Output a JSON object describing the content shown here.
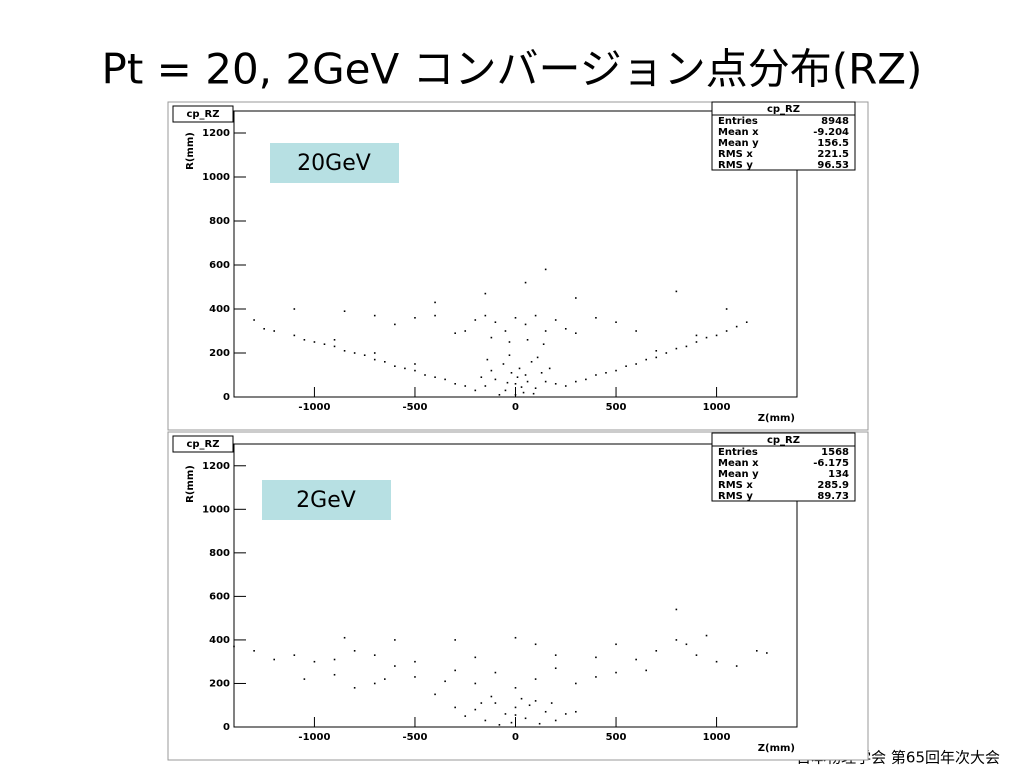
{
  "title": "Pt = 20, 2GeV コンバージョン点分布(RZ)",
  "footer": "日本物理学会 第65回年次大会",
  "chart_data": [
    {
      "type": "scatter",
      "panel_label": "cp_RZ",
      "annotation": "20GeV",
      "xlabel": "Z(mm)",
      "ylabel": "R(mm)",
      "xlim": [
        -1400,
        1400
      ],
      "ylim": [
        0,
        1300
      ],
      "xticks": [
        -1000,
        -500,
        0,
        500,
        1000
      ],
      "yticks": [
        0,
        200,
        400,
        600,
        800,
        1000,
        1200
      ],
      "color": "#000000",
      "stats": {
        "title": "cp_RZ",
        "rows": [
          {
            "label": "Entries",
            "value": 8948
          },
          {
            "label": "Mean x",
            "value": -9.204
          },
          {
            "label": "Mean y",
            "value": 156.5
          },
          {
            "label": "RMS x",
            "value": 221.5
          },
          {
            "label": "RMS y",
            "value": 96.53
          }
        ]
      },
      "x": [
        -150,
        -100,
        -50,
        0,
        50,
        100,
        150,
        -120,
        -60,
        20,
        80,
        130,
        -30,
        40,
        -80,
        10,
        60,
        -20,
        110,
        -140,
        0,
        30,
        -40,
        90,
        170,
        -170,
        200,
        -200,
        -250,
        -200,
        -150,
        -100,
        -50,
        0,
        50,
        100,
        150,
        200,
        250,
        300,
        -300,
        -400,
        -500,
        -600,
        400,
        500,
        600,
        -700,
        -30,
        60,
        -120,
        140,
        -1300,
        -1250,
        -1200,
        -1100,
        -1050,
        -1000,
        -950,
        -900,
        -850,
        -800,
        -750,
        -700,
        -650,
        -600,
        -550,
        -500,
        -450,
        -400,
        -350,
        -300,
        -250,
        -900,
        -700,
        -500,
        250,
        300,
        350,
        400,
        450,
        500,
        550,
        600,
        650,
        700,
        750,
        800,
        850,
        900,
        950,
        1000,
        1050,
        1100,
        1150,
        700,
        900,
        -1100,
        -850,
        150,
        50,
        -150,
        800,
        1050,
        -400,
        300
      ],
      "y": [
        50,
        80,
        30,
        60,
        100,
        40,
        70,
        120,
        150,
        130,
        160,
        110,
        190,
        20,
        10,
        90,
        70,
        110,
        180,
        170,
        10,
        45,
        65,
        15,
        130,
        90,
        60,
        30,
        300,
        350,
        370,
        340,
        300,
        360,
        330,
        370,
        300,
        350,
        310,
        290,
        290,
        370,
        360,
        330,
        360,
        340,
        300,
        370,
        250,
        260,
        270,
        240,
        350,
        310,
        300,
        280,
        260,
        250,
        240,
        230,
        210,
        200,
        190,
        170,
        160,
        140,
        130,
        120,
        100,
        90,
        80,
        60,
        50,
        260,
        200,
        150,
        50,
        70,
        80,
        100,
        110,
        120,
        140,
        150,
        170,
        180,
        200,
        220,
        230,
        250,
        270,
        280,
        300,
        320,
        340,
        210,
        280,
        400,
        390,
        580,
        520,
        470,
        480,
        400,
        430,
        450
      ]
    },
    {
      "type": "scatter",
      "panel_label": "cp_RZ",
      "annotation": "2GeV",
      "xlabel": "Z(mm)",
      "ylabel": "R(mm)",
      "xlim": [
        -1400,
        1400
      ],
      "ylim": [
        0,
        1300
      ],
      "xticks": [
        -1000,
        -500,
        0,
        500,
        1000
      ],
      "yticks": [
        0,
        200,
        400,
        600,
        800,
        1000,
        1200
      ],
      "color": "#000000",
      "stats": {
        "title": "cp_RZ",
        "rows": [
          {
            "label": "Entries",
            "value": 1568
          },
          {
            "label": "Mean x",
            "value": -6.175
          },
          {
            "label": "Mean y",
            "value": 134
          },
          {
            "label": "RMS x",
            "value": 285.9
          },
          {
            "label": "RMS y",
            "value": 89.73
          }
        ]
      },
      "x": [
        -250,
        -200,
        -150,
        -100,
        -50,
        0,
        50,
        100,
        150,
        200,
        250,
        -80,
        30,
        -20,
        120,
        -120,
        70,
        -170,
        180,
        0,
        -300,
        300,
        -400,
        -350,
        -300,
        -200,
        -100,
        0,
        100,
        200,
        300,
        400,
        500,
        -500,
        -600,
        -700,
        -800,
        -900,
        -1000,
        -1100,
        -1200,
        -1300,
        -850,
        -800,
        -900,
        600,
        700,
        800,
        850,
        900,
        1000,
        1100,
        1200,
        1250,
        -600,
        0,
        100,
        -200,
        200,
        800,
        -1400,
        -300,
        400,
        -500,
        500,
        -700,
        650,
        -650,
        950,
        -1050
      ],
      "y": [
        50,
        80,
        30,
        110,
        60,
        90,
        40,
        120,
        70,
        30,
        60,
        10,
        130,
        20,
        15,
        140,
        100,
        110,
        110,
        55,
        90,
        70,
        150,
        210,
        260,
        200,
        250,
        180,
        220,
        270,
        200,
        230,
        250,
        230,
        280,
        200,
        180,
        310,
        300,
        330,
        310,
        350,
        410,
        350,
        240,
        310,
        350,
        400,
        380,
        330,
        300,
        280,
        350,
        340,
        400,
        410,
        380,
        320,
        330,
        540,
        370,
        400,
        320,
        300,
        380,
        330,
        260,
        220,
        420,
        220
      ]
    }
  ]
}
